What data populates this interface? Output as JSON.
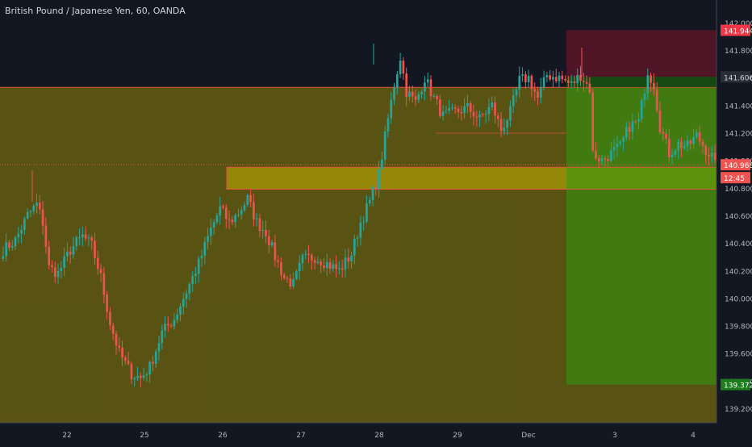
{
  "chart_data": {
    "type": "candlestick",
    "title": "British Pound / Japanese Yen, 60, OANDA",
    "x_ticks": [
      "22",
      "25",
      "26",
      "27",
      "28",
      "29",
      "Dec",
      "3",
      "4"
    ],
    "y_ticks": [
      "142.000",
      "141.800",
      "141.600",
      "141.400",
      "141.200",
      "141.000",
      "140.800",
      "140.600",
      "140.400",
      "140.200",
      "140.000",
      "139.800",
      "139.600",
      "139.400",
      "139.200"
    ],
    "ylim": [
      139.1,
      142.05
    ],
    "grid": false,
    "price_labels": {
      "stop_loss": "141.944",
      "entry": "141.606",
      "last_price": "140.968",
      "countdown": "12:45",
      "take_profit": "139.372"
    },
    "zones": [
      {
        "name": "big-demand-zone",
        "y_top": 141.53,
        "y_bottom": 139.0,
        "color": "#b8a800"
      },
      {
        "name": "mid-supply-band",
        "y_top": 140.95,
        "y_bottom": 140.79,
        "color": "#c8b400"
      },
      {
        "name": "stop-zone",
        "y_top": 141.944,
        "y_bottom": 141.606,
        "color": "#b2102a"
      },
      {
        "name": "target-zone",
        "y_top": 141.606,
        "y_bottom": 139.372,
        "color": "#2e9a10"
      }
    ],
    "waypoints": [
      [
        0,
        140.35
      ],
      [
        4,
        140.42
      ],
      [
        8,
        140.6
      ],
      [
        11,
        140.68
      ],
      [
        13,
        140.55
      ],
      [
        15,
        140.22
      ],
      [
        18,
        140.18
      ],
      [
        22,
        140.35
      ],
      [
        26,
        140.45
      ],
      [
        29,
        140.38
      ],
      [
        32,
        140.15
      ],
      [
        35,
        139.82
      ],
      [
        38,
        139.6
      ],
      [
        42,
        139.45
      ],
      [
        45,
        139.42
      ],
      [
        48,
        139.5
      ],
      [
        52,
        139.75
      ],
      [
        56,
        139.85
      ],
      [
        60,
        140.05
      ],
      [
        64,
        140.25
      ],
      [
        68,
        140.5
      ],
      [
        71,
        140.65
      ],
      [
        74,
        140.55
      ],
      [
        77,
        140.62
      ],
      [
        80,
        140.72
      ],
      [
        83,
        140.55
      ],
      [
        86,
        140.48
      ],
      [
        89,
        140.3
      ],
      [
        92,
        140.15
      ],
      [
        95,
        140.1
      ],
      [
        98,
        140.28
      ],
      [
        102,
        140.3
      ],
      [
        106,
        140.25
      ],
      [
        110,
        140.2
      ],
      [
        114,
        140.32
      ],
      [
        117,
        140.55
      ],
      [
        120,
        140.7
      ],
      [
        123,
        140.9
      ],
      [
        126,
        141.3
      ],
      [
        128,
        141.55
      ],
      [
        130,
        141.75
      ],
      [
        132,
        141.5
      ],
      [
        135,
        141.42
      ],
      [
        138,
        141.6
      ],
      [
        141,
        141.45
      ],
      [
        144,
        141.32
      ],
      [
        148,
        141.35
      ],
      [
        152,
        141.38
      ],
      [
        156,
        141.3
      ],
      [
        160,
        141.4
      ],
      [
        163,
        141.22
      ],
      [
        166,
        141.35
      ],
      [
        169,
        141.58
      ],
      [
        172,
        141.6
      ],
      [
        175,
        141.45
      ],
      [
        178,
        141.62
      ],
      [
        182,
        141.6
      ],
      [
        186,
        141.55
      ],
      [
        189,
        141.62
      ],
      [
        192,
        141.52
      ],
      [
        193,
        141.05
      ],
      [
        196,
        141.0
      ],
      [
        199,
        141.05
      ],
      [
        202,
        141.1
      ],
      [
        205,
        141.25
      ],
      [
        208,
        141.28
      ],
      [
        211,
        141.65
      ],
      [
        213,
        141.55
      ],
      [
        215,
        141.25
      ],
      [
        218,
        141.05
      ],
      [
        221,
        141.12
      ],
      [
        224,
        141.1
      ],
      [
        227,
        141.18
      ],
      [
        230,
        141.08
      ],
      [
        233,
        141.0
      ]
    ]
  }
}
